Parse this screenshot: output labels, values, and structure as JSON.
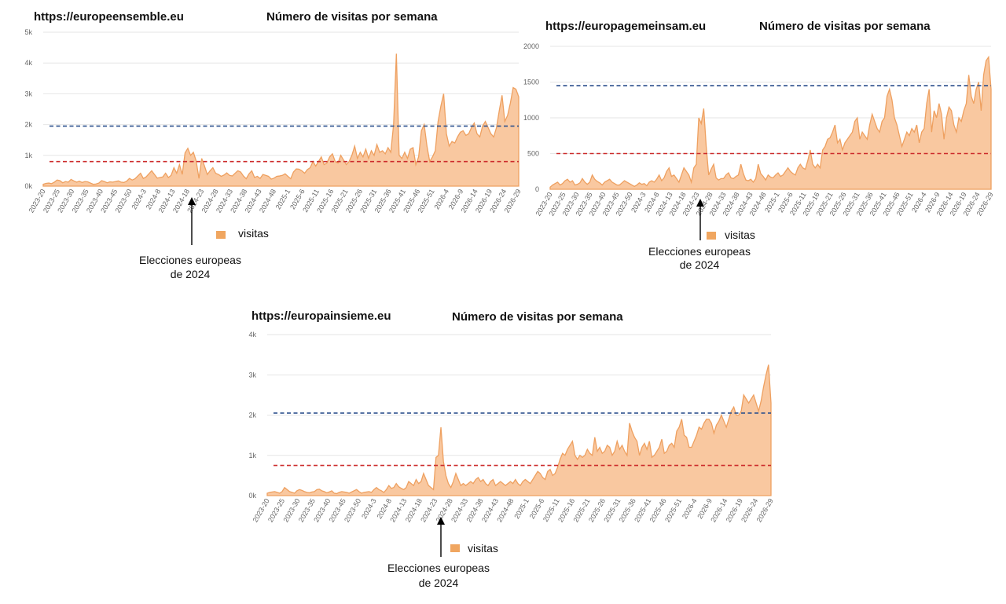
{
  "colors": {
    "area_fill": "#f9c8a0",
    "area_line": "#eea060",
    "legend_marker": "#f0a660",
    "upper_ref_line": "#2b4f8c",
    "lower_ref_line": "#cc2b2b",
    "grid": "#e6e6e6",
    "arrow": "#000000"
  },
  "chart_data": [
    {
      "type": "area",
      "site": "https://europeensemble.eu",
      "title": "Número de visitas por semana",
      "ylim": [
        0,
        5000
      ],
      "yticks": [
        0,
        1000,
        2000,
        3000,
        4000,
        5000
      ],
      "ytick_labels": [
        "0k",
        "1k",
        "2k",
        "3k",
        "4k",
        "5k"
      ],
      "x_tick_labels": [
        "2023-20",
        "2023-25",
        "2023-30",
        "2023-35",
        "2023-40",
        "2023-45",
        "2023-50",
        "2024-3",
        "2024-8",
        "2024-13",
        "2024-18",
        "2024-23",
        "2024-28",
        "2024-33",
        "2024-38",
        "2024-43",
        "2024-48",
        "2025-1",
        "2025-6",
        "2025-11",
        "2025-16",
        "2025-21",
        "2025-26",
        "2025-31",
        "2025-36",
        "2025-41",
        "2025-46",
        "2025-51",
        "2026-4",
        "2026-9",
        "2026-14",
        "2026-19",
        "2026-24",
        "2026-29"
      ],
      "grid": true,
      "legend": {
        "position": "bottom",
        "label": "visitas"
      },
      "annotation": {
        "line1": "Elecciones europeas",
        "line2": "de 2024",
        "x": "2024-23"
      },
      "reference_lines": [
        1950,
        800
      ],
      "series": [
        {
          "name": "visitas",
          "x_start": "2023-20",
          "values": [
            60,
            90,
            100,
            80,
            130,
            200,
            180,
            110,
            150,
            130,
            220,
            170,
            130,
            160,
            120,
            150,
            140,
            100,
            60,
            70,
            100,
            180,
            150,
            110,
            140,
            130,
            150,
            170,
            130,
            120,
            160,
            250,
            200,
            240,
            330,
            420,
            250,
            300,
            400,
            500,
            380,
            260,
            280,
            300,
            420,
            280,
            350,
            600,
            420,
            700,
            380,
            1080,
            1230,
            1000,
            1100,
            820,
            250,
            900,
            650,
            380,
            500,
            600,
            420,
            380,
            320,
            360,
            430,
            350,
            330,
            420,
            500,
            460,
            330,
            240,
            400,
            500,
            280,
            320,
            250,
            380,
            350,
            320,
            230,
            260,
            320,
            330,
            350,
            400,
            320,
            240,
            460,
            560,
            550,
            500,
            420,
            540,
            600,
            800,
            650,
            800,
            950,
            700,
            750,
            950,
            1050,
            800,
            750,
            1000,
            850,
            700,
            800,
            1000,
            1300,
            900,
            1100,
            950,
            1200,
            900,
            1150,
            1000,
            1350,
            1100,
            1150,
            1050,
            1250,
            1100,
            2000,
            4300,
            1000,
            900,
            1100,
            900,
            1200,
            1250,
            700,
            950,
            1800,
            2000,
            1300,
            800,
            950,
            1150,
            2100,
            2600,
            3000,
            1700,
            1300,
            1450,
            1400,
            1600,
            1750,
            1800,
            1650,
            1700,
            1900,
            2050,
            1700,
            1600,
            1950,
            2100,
            1900,
            1700,
            1600,
            1900,
            2450,
            2950,
            2100,
            2300,
            2700,
            3200,
            3150,
            2900
          ]
        }
      ]
    },
    {
      "type": "area",
      "site": "https://europagemeinsam.eu",
      "title": "Número de visitas por semana",
      "ylim": [
        0,
        2000
      ],
      "yticks": [
        0,
        500,
        1000,
        1500,
        2000
      ],
      "ytick_labels": [
        "0",
        "500",
        "1000",
        "1500",
        "2000"
      ],
      "x_tick_labels": [
        "2023-20",
        "2023-25",
        "2023-30",
        "2023-35",
        "2023-40",
        "2023-45",
        "2023-50",
        "2024-3",
        "2024-8",
        "2024-13",
        "2024-18",
        "2024-23",
        "2024-28",
        "2024-33",
        "2024-38",
        "2024-43",
        "2024-48",
        "2025-1",
        "2025-6",
        "2025-11",
        "2025-16",
        "2025-21",
        "2025-26",
        "2025-31",
        "2025-36",
        "2025-41",
        "2025-46",
        "2025-51",
        "2026-4",
        "2026-9",
        "2026-14",
        "2026-19",
        "2026-24",
        "2026-29"
      ],
      "grid": true,
      "legend": {
        "position": "bottom",
        "label": "visitas"
      },
      "annotation": {
        "line1": "Elecciones europeas",
        "line2": "de 2024",
        "x": "2024-23"
      },
      "reference_lines": [
        1450,
        500
      ],
      "series": [
        {
          "name": "visitas",
          "x_start": "2023-20",
          "values": [
            30,
            60,
            80,
            100,
            60,
            80,
            120,
            140,
            100,
            120,
            60,
            70,
            90,
            150,
            100,
            70,
            100,
            200,
            140,
            110,
            90,
            60,
            100,
            120,
            140,
            100,
            80,
            60,
            60,
            90,
            120,
            100,
            80,
            60,
            40,
            60,
            90,
            70,
            80,
            50,
            100,
            120,
            100,
            140,
            200,
            120,
            160,
            250,
            300,
            180,
            200,
            150,
            100,
            200,
            300,
            250,
            200,
            100,
            300,
            350,
            1000,
            920,
            1130,
            600,
            200,
            280,
            350,
            160,
            130,
            150,
            150,
            200,
            230,
            160,
            150,
            180,
            200,
            350,
            220,
            130,
            120,
            140,
            100,
            150,
            350,
            220,
            180,
            130,
            200,
            170,
            160,
            200,
            230,
            180,
            200,
            250,
            300,
            250,
            220,
            200,
            300,
            350,
            300,
            280,
            400,
            550,
            350,
            300,
            350,
            300,
            550,
            600,
            700,
            720,
            800,
            900,
            650,
            700,
            550,
            650,
            700,
            750,
            800,
            950,
            1000,
            700,
            800,
            750,
            700,
            900,
            1050,
            950,
            850,
            800,
            950,
            1000,
            1300,
            1400,
            1250,
            1000,
            900,
            750,
            600,
            700,
            800,
            750,
            850,
            800,
            900,
            650,
            800,
            850,
            1200,
            1400,
            800,
            1100,
            1000,
            1200,
            1050,
            700,
            1000,
            1150,
            1100,
            900,
            800,
            1000,
            950,
            1100,
            1200,
            1600,
            1300,
            1200,
            1400,
            1500,
            1100,
            1600,
            1800,
            1850,
            1400
          ]
        }
      ]
    },
    {
      "type": "area",
      "site": "https://europainsieme.eu",
      "title": "Número de visitas por semana",
      "ylim": [
        0,
        4000
      ],
      "yticks": [
        0,
        1000,
        2000,
        3000,
        4000
      ],
      "ytick_labels": [
        "0k",
        "1k",
        "2k",
        "3k",
        "4k"
      ],
      "x_tick_labels": [
        "2023-20",
        "2023-25",
        "2023-30",
        "2023-35",
        "2023-40",
        "2023-45",
        "2023-50",
        "2024-3",
        "2024-8",
        "2024-13",
        "2024-18",
        "2024-23",
        "2024-28",
        "2024-33",
        "2024-38",
        "2024-43",
        "2024-48",
        "2025-1",
        "2025-6",
        "2025-11",
        "2025-16",
        "2025-21",
        "2025-26",
        "2025-31",
        "2025-36",
        "2025-41",
        "2025-46",
        "2025-51",
        "2026-4",
        "2026-9",
        "2026-14",
        "2026-19",
        "2026-24",
        "2026-29"
      ],
      "grid": true,
      "legend": {
        "position": "bottom",
        "label": "visitas"
      },
      "annotation": {
        "line1": "Elecciones europeas",
        "line2": "de 2024",
        "x": "2024-23"
      },
      "reference_lines": [
        2050,
        750
      ],
      "series": [
        {
          "name": "visitas",
          "x_start": "2023-20",
          "values": [
            60,
            80,
            90,
            100,
            80,
            60,
            100,
            200,
            150,
            100,
            80,
            60,
            120,
            150,
            130,
            100,
            80,
            70,
            90,
            100,
            150,
            160,
            120,
            100,
            70,
            90,
            120,
            60,
            50,
            80,
            100,
            90,
            80,
            60,
            90,
            120,
            150,
            100,
            60,
            80,
            90,
            100,
            80,
            150,
            200,
            150,
            120,
            80,
            150,
            250,
            180,
            200,
            300,
            220,
            180,
            150,
            200,
            350,
            300,
            250,
            400,
            300,
            350,
            550,
            400,
            250,
            200,
            150,
            950,
            1000,
            1700,
            850,
            500,
            300,
            200,
            350,
            550,
            400,
            250,
            300,
            250,
            300,
            350,
            300,
            400,
            450,
            350,
            400,
            300,
            250,
            350,
            400,
            250,
            300,
            350,
            300,
            250,
            300,
            350,
            300,
            400,
            300,
            250,
            350,
            400,
            350,
            300,
            400,
            500,
            600,
            550,
            450,
            400,
            600,
            650,
            500,
            550,
            700,
            900,
            1050,
            1000,
            1150,
            1250,
            1350,
            1000,
            900,
            1000,
            950,
            1000,
            1150,
            1050,
            1000,
            1450,
            1100,
            1200,
            1050,
            1100,
            1250,
            1200,
            1000,
            1100,
            1350,
            1150,
            1250,
            1100,
            1000,
            1800,
            1600,
            1450,
            1350,
            1000,
            1200,
            1300,
            1150,
            1350,
            950,
            1000,
            1100,
            1200,
            1400,
            1050,
            1100,
            1250,
            1300,
            1200,
            1600,
            1700,
            1900,
            1500,
            1450,
            1200,
            1200,
            1350,
            1500,
            1700,
            1650,
            1800,
            1900,
            1900,
            1800,
            1550,
            1750,
            1850,
            2000,
            1850,
            1700,
            1900,
            2100,
            2200,
            2000,
            2000,
            2100,
            2500,
            2400,
            2300,
            2400,
            2500,
            2300,
            2100,
            2350,
            2700,
            3000,
            3250,
            2300
          ]
        }
      ]
    }
  ]
}
